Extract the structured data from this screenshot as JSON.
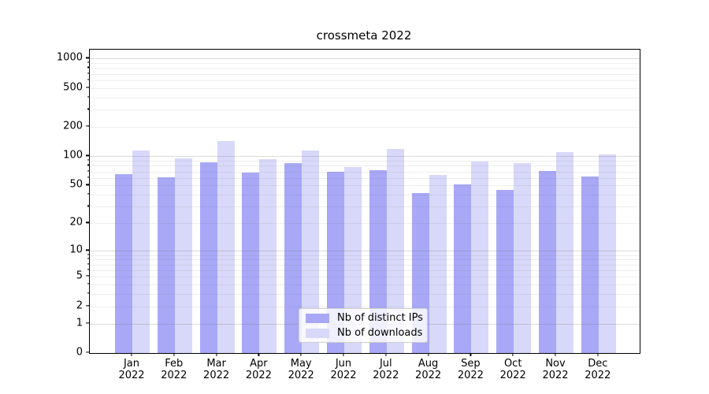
{
  "chart_data": {
    "type": "bar",
    "title": "crossmeta 2022",
    "categories": [
      "Jan",
      "Feb",
      "Mar",
      "Apr",
      "May",
      "Jun",
      "Jul",
      "Aug",
      "Sep",
      "Oct",
      "Nov",
      "Dec"
    ],
    "x_year_line": "2022",
    "series": [
      {
        "name": "Nb of distinct IPs",
        "color": "#a8a8f7",
        "values": [
          66,
          61,
          87,
          68,
          85,
          69,
          72,
          42,
          51,
          45,
          71,
          62
        ]
      },
      {
        "name": "Nb of downloads",
        "color": "#d8d8fa",
        "values": [
          115,
          95,
          143,
          94,
          114,
          78,
          120,
          64,
          88,
          85,
          110,
          105
        ]
      }
    ],
    "yscale": "log1p",
    "yticks": [
      1000,
      500,
      200,
      100,
      50,
      20,
      10,
      5,
      2,
      1,
      0
    ],
    "ylim": [
      0,
      1235
    ],
    "xlabel": "",
    "ylabel": "",
    "grid": "horizontal",
    "legend_position": "lower center",
    "colors": {
      "major_grid": "#6e6e6e",
      "minor_grid": "#ececec",
      "axis": "#000000",
      "background": "#ffffff"
    }
  }
}
